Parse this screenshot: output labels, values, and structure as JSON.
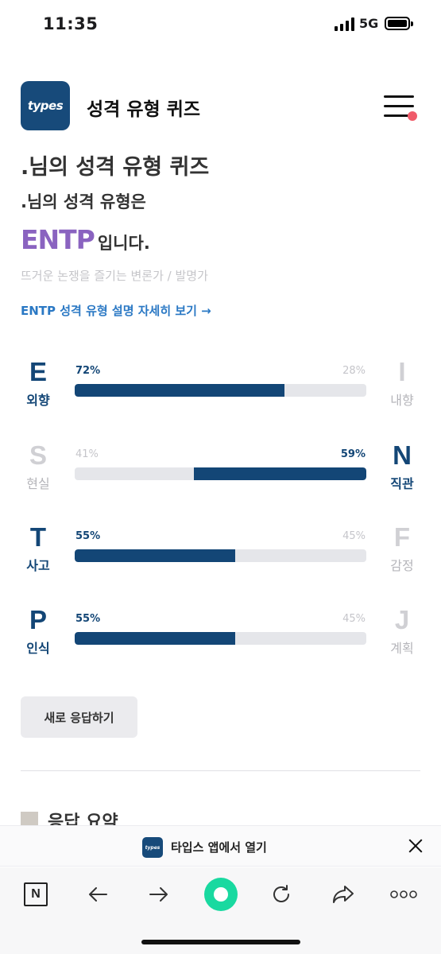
{
  "status_bar": {
    "time": "11:35",
    "network": "5G"
  },
  "header": {
    "logo_text": "types",
    "title": "성격 유형 퀴즈"
  },
  "result": {
    "title": ".님의 성격 유형 퀴즈",
    "subtitle": ".님의 성격 유형은",
    "type_code": "ENTP",
    "type_suffix": "입니다.",
    "type_description": "뜨거운 논쟁을 즐기는 변론가 / 발명가",
    "detail_link": "ENTP 성격 유형 설명 자세히 보기 →"
  },
  "traits": [
    {
      "left_letter": "E",
      "left_word": "외향",
      "left_pct": "72%",
      "right_letter": "I",
      "right_word": "내향",
      "right_pct": "28%",
      "dominant": "left",
      "fill": 0.72
    },
    {
      "left_letter": "S",
      "left_word": "현실",
      "left_pct": "41%",
      "right_letter": "N",
      "right_word": "직관",
      "right_pct": "59%",
      "dominant": "right",
      "fill": 0.59
    },
    {
      "left_letter": "T",
      "left_word": "사고",
      "left_pct": "55%",
      "right_letter": "F",
      "right_word": "감정",
      "right_pct": "45%",
      "dominant": "left",
      "fill": 0.55
    },
    {
      "left_letter": "P",
      "left_word": "인식",
      "left_pct": "55%",
      "right_letter": "J",
      "right_word": "계획",
      "right_pct": "45%",
      "dominant": "left",
      "fill": 0.55
    }
  ],
  "actions": {
    "retry_label": "새로 응답하기"
  },
  "summary": {
    "title": "응답 요약"
  },
  "app_banner": {
    "logo_text": "types",
    "label": "타입스 앱에서 열기"
  },
  "toolbar": {
    "n_label": "N",
    "icons": [
      "naver-n-icon",
      "back-arrow-icon",
      "forward-arrow-icon",
      "home-icon",
      "refresh-icon",
      "share-icon",
      "more-icon"
    ]
  },
  "colors": {
    "brand": "#174a7a",
    "bar": "#134676",
    "type_code": "#8a63c0",
    "link": "#2a78c4",
    "home": "#19d9a0",
    "notify_dot": "#f05b6a"
  }
}
